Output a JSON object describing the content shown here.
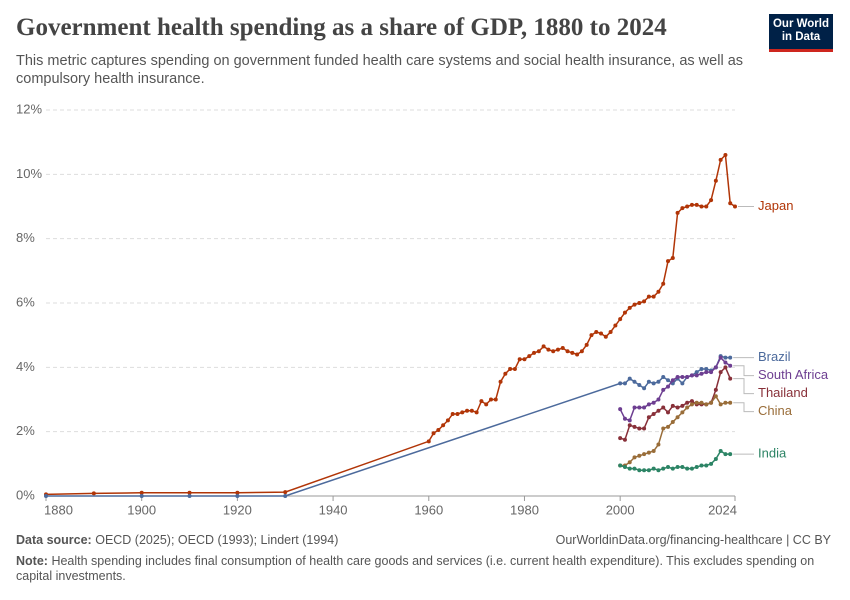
{
  "header": {
    "title": "Government health spending as a share of GDP, 1880 to 2024",
    "subtitle": "This metric captures spending on government funded health care systems and social health insurance, as well as compulsory health insurance.",
    "logo": [
      "Our World",
      "in Data"
    ]
  },
  "chart_data": {
    "type": "line",
    "xlim": [
      1880,
      2024
    ],
    "xticks": [
      1880,
      1900,
      1920,
      1940,
      1960,
      1980,
      2000,
      2024
    ],
    "ylim": [
      0,
      12
    ],
    "yticks": [
      {
        "value": 0,
        "label": "0%"
      },
      {
        "value": 2,
        "label": "2%"
      },
      {
        "value": 4,
        "label": "4%"
      },
      {
        "value": 6,
        "label": "6%"
      },
      {
        "value": 8,
        "label": "8%"
      },
      {
        "value": 10,
        "label": "10%"
      },
      {
        "value": 12,
        "label": "12%"
      }
    ],
    "grid": true,
    "series": [
      {
        "name": "Japan",
        "color": "#b13507",
        "x": [
          1880,
          1890,
          1900,
          1910,
          1920,
          1930,
          1960,
          1961,
          1962,
          1963,
          1964,
          1965,
          1966,
          1967,
          1968,
          1969,
          1970,
          1971,
          1972,
          1973,
          1974,
          1975,
          1976,
          1977,
          1978,
          1979,
          1980,
          1981,
          1982,
          1983,
          1984,
          1985,
          1986,
          1987,
          1988,
          1989,
          1990,
          1991,
          1992,
          1993,
          1994,
          1995,
          1996,
          1997,
          1998,
          1999,
          2000,
          2001,
          2002,
          2003,
          2004,
          2005,
          2006,
          2007,
          2008,
          2009,
          2010,
          2011,
          2012,
          2013,
          2014,
          2015,
          2016,
          2017,
          2018,
          2019,
          2020,
          2021,
          2022,
          2023,
          2024
        ],
        "values": [
          0.05,
          0.08,
          0.1,
          0.1,
          0.1,
          0.12,
          1.7,
          1.95,
          2.05,
          2.2,
          2.35,
          2.55,
          2.55,
          2.6,
          2.65,
          2.65,
          2.6,
          2.95,
          2.85,
          3.0,
          3.0,
          3.55,
          3.8,
          3.95,
          3.95,
          4.25,
          4.25,
          4.35,
          4.45,
          4.5,
          4.65,
          4.55,
          4.5,
          4.55,
          4.6,
          4.5,
          4.45,
          4.4,
          4.5,
          4.7,
          5.0,
          5.1,
          5.05,
          4.95,
          5.1,
          5.3,
          5.5,
          5.7,
          5.85,
          5.95,
          6.0,
          6.05,
          6.2,
          6.2,
          6.35,
          6.6,
          7.3,
          7.4,
          8.8,
          8.95,
          9.0,
          9.05,
          9.05,
          9.0,
          9.0,
          9.2,
          9.8,
          10.45,
          10.6,
          9.1,
          9.0
        ]
      },
      {
        "name": "Brazil",
        "color": "#4c6a9c",
        "x": [
          1880,
          1900,
          1910,
          1920,
          1930,
          2000,
          2001,
          2002,
          2003,
          2004,
          2005,
          2006,
          2007,
          2008,
          2009,
          2010,
          2011,
          2012,
          2013,
          2014,
          2015,
          2016,
          2017,
          2018,
          2019,
          2020,
          2021,
          2022,
          2023
        ],
        "values": [
          0,
          0,
          0,
          0,
          0,
          3.5,
          3.5,
          3.65,
          3.55,
          3.45,
          3.35,
          3.55,
          3.5,
          3.55,
          3.7,
          3.6,
          3.5,
          3.65,
          3.5,
          3.7,
          3.75,
          3.85,
          3.95,
          3.95,
          3.9,
          4.0,
          4.35,
          4.3,
          4.3
        ]
      },
      {
        "name": "South Africa",
        "color": "#6d3e91",
        "x": [
          2000,
          2001,
          2002,
          2003,
          2004,
          2005,
          2006,
          2007,
          2008,
          2009,
          2010,
          2011,
          2012,
          2013,
          2014,
          2015,
          2016,
          2017,
          2018,
          2019,
          2020,
          2021,
          2022,
          2023
        ],
        "values": [
          2.7,
          2.4,
          2.35,
          2.75,
          2.75,
          2.75,
          2.85,
          2.9,
          3.0,
          3.3,
          3.4,
          3.6,
          3.7,
          3.7,
          3.7,
          3.75,
          3.75,
          3.8,
          3.85,
          3.85,
          4.0,
          4.3,
          4.15,
          4.05
        ]
      },
      {
        "name": "Thailand",
        "color": "#883039",
        "x": [
          2000,
          2001,
          2002,
          2003,
          2004,
          2005,
          2006,
          2007,
          2008,
          2009,
          2010,
          2011,
          2012,
          2013,
          2014,
          2015,
          2016,
          2017,
          2018,
          2019,
          2020,
          2021,
          2022,
          2023
        ],
        "values": [
          1.8,
          1.75,
          2.2,
          2.15,
          2.1,
          2.1,
          2.45,
          2.55,
          2.65,
          2.75,
          2.6,
          2.8,
          2.75,
          2.8,
          2.9,
          2.95,
          2.85,
          2.85,
          2.85,
          2.9,
          3.3,
          3.85,
          4.0,
          3.65
        ]
      },
      {
        "name": "China",
        "color": "#996d39",
        "x": [
          2000,
          2001,
          2002,
          2003,
          2004,
          2005,
          2006,
          2007,
          2008,
          2009,
          2010,
          2011,
          2012,
          2013,
          2014,
          2015,
          2016,
          2017,
          2018,
          2019,
          2020,
          2021,
          2022,
          2023
        ],
        "values": [
          0.95,
          0.95,
          1.05,
          1.2,
          1.25,
          1.3,
          1.35,
          1.4,
          1.6,
          2.1,
          2.15,
          2.3,
          2.45,
          2.6,
          2.75,
          2.85,
          2.9,
          2.9,
          2.85,
          2.9,
          3.1,
          2.85,
          2.9,
          2.9
        ]
      },
      {
        "name": "India",
        "color": "#2c8465",
        "x": [
          2000,
          2001,
          2002,
          2003,
          2004,
          2005,
          2006,
          2007,
          2008,
          2009,
          2010,
          2011,
          2012,
          2013,
          2014,
          2015,
          2016,
          2017,
          2018,
          2019,
          2020,
          2021,
          2022,
          2023
        ],
        "values": [
          0.95,
          0.9,
          0.85,
          0.85,
          0.8,
          0.8,
          0.8,
          0.85,
          0.8,
          0.85,
          0.9,
          0.85,
          0.9,
          0.9,
          0.85,
          0.85,
          0.9,
          0.95,
          0.95,
          1.0,
          1.15,
          1.4,
          1.3,
          1.3
        ]
      }
    ]
  },
  "footer": {
    "source_label": "Data source:",
    "source": "OECD (2025); OECD (1993); Lindert (1994)",
    "url": "OurWorldinData.org/financing-healthcare | CC BY",
    "note_label": "Note:",
    "note": "Health spending includes final consumption of health care goods and services (i.e. current health expenditure). This excludes spending on capital investments."
  }
}
